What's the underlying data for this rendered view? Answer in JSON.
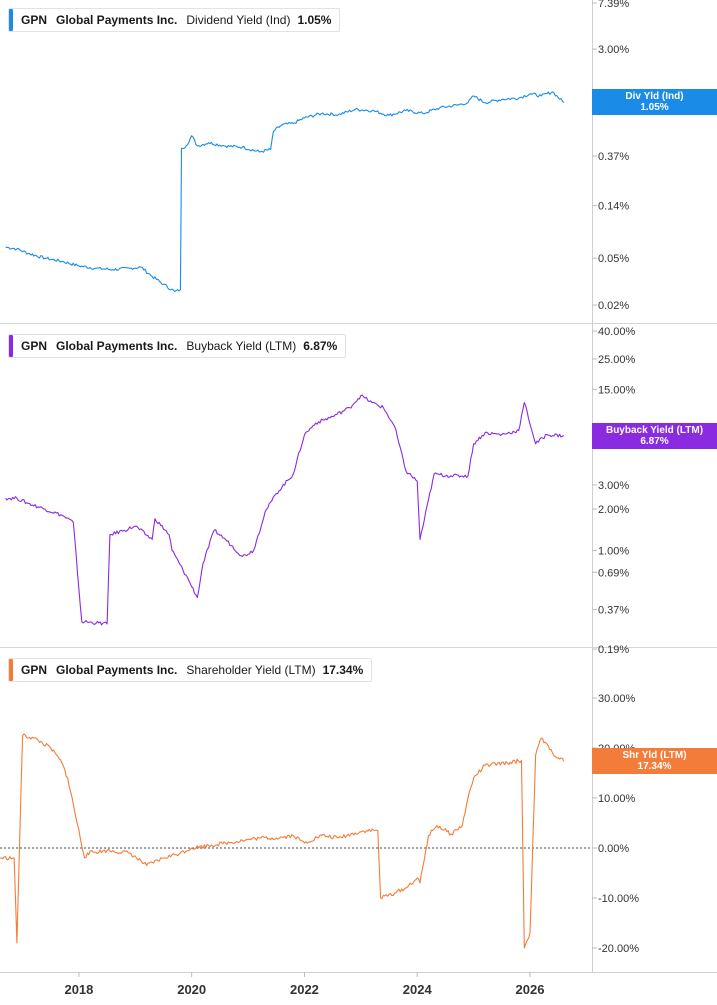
{
  "chart_data": [
    {
      "type": "line",
      "ticker": "GPN",
      "company": "Global Payments Inc.",
      "metric": "Dividend Yield (Ind)",
      "current_value": "1.05%",
      "badge_label": "Div Yld (Ind)",
      "color": "#1a8ce8",
      "scale": "log",
      "yticks": [
        "7.39%",
        "3.00%",
        "0.37%",
        "0.14%",
        "0.05%",
        "0.02%"
      ],
      "ytick_values": [
        7.39,
        3.0,
        0.37,
        0.14,
        0.05,
        0.02
      ],
      "ylim": [
        0.018,
        7.39
      ],
      "x": [
        2016.7,
        2016.9,
        2017.1,
        2017.4,
        2017.7,
        2018.0,
        2018.3,
        2018.6,
        2018.9,
        2019.1,
        2019.3,
        2019.5,
        2019.7,
        2019.8,
        2019.82,
        2019.9,
        2020.0,
        2020.1,
        2020.3,
        2020.6,
        2020.9,
        2021.2,
        2021.4,
        2021.45,
        2021.6,
        2021.8,
        2022.0,
        2022.3,
        2022.6,
        2022.9,
        2023.2,
        2023.5,
        2023.8,
        2024.1,
        2024.4,
        2024.7,
        2024.9,
        2025.0,
        2025.2,
        2025.5,
        2025.8,
        2026.0,
        2026.2,
        2026.4,
        2026.6
      ],
      "y": [
        0.062,
        0.06,
        0.055,
        0.05,
        0.047,
        0.043,
        0.041,
        0.04,
        0.041,
        0.042,
        0.035,
        0.03,
        0.026,
        0.027,
        0.43,
        0.45,
        0.55,
        0.45,
        0.48,
        0.45,
        0.44,
        0.4,
        0.42,
        0.6,
        0.68,
        0.7,
        0.78,
        0.85,
        0.83,
        0.92,
        0.9,
        0.82,
        0.9,
        0.85,
        0.95,
        1.0,
        1.05,
        1.2,
        1.05,
        1.12,
        1.15,
        1.25,
        1.2,
        1.3,
        1.05
      ]
    },
    {
      "type": "line",
      "ticker": "GPN",
      "company": "Global Payments Inc.",
      "metric": "Buyback Yield (LTM)",
      "current_value": "6.87%",
      "badge_label": "Buyback Yield (LTM)",
      "color": "#8a2be2",
      "scale": "log",
      "yticks": [
        "40.00%",
        "25.00%",
        "15.00%",
        "3.00%",
        "2.00%",
        "1.00%",
        "0.69%",
        "0.37%",
        "0.19%"
      ],
      "ytick_values": [
        40,
        25,
        15,
        3.0,
        2.0,
        1.0,
        0.69,
        0.37,
        0.19
      ],
      "ylim": [
        0.19,
        40
      ],
      "x": [
        2016.7,
        2016.9,
        2017.1,
        2017.4,
        2017.7,
        2017.9,
        2018.05,
        2018.1,
        2018.5,
        2018.55,
        2018.8,
        2019.0,
        2019.3,
        2019.35,
        2019.6,
        2019.65,
        2019.95,
        2020.1,
        2020.2,
        2020.4,
        2020.6,
        2020.9,
        2021.1,
        2021.3,
        2021.5,
        2021.8,
        2022.0,
        2022.2,
        2022.5,
        2022.8,
        2023.0,
        2023.2,
        2023.4,
        2023.6,
        2023.8,
        2024.0,
        2024.05,
        2024.3,
        2024.6,
        2024.9,
        2025.0,
        2025.2,
        2025.5,
        2025.8,
        2025.9,
        2026.1,
        2026.3,
        2026.6
      ],
      "y": [
        2.4,
        2.4,
        2.2,
        2.0,
        1.8,
        1.6,
        0.3,
        0.3,
        0.29,
        1.3,
        1.4,
        1.5,
        1.2,
        1.7,
        1.3,
        1.0,
        0.6,
        0.45,
        0.8,
        1.4,
        1.2,
        0.9,
        1.0,
        1.9,
        2.6,
        3.6,
        7.0,
        8.5,
        9.5,
        11.0,
        13.5,
        12.0,
        11.0,
        8.0,
        3.8,
        3.2,
        1.2,
        3.6,
        3.5,
        3.5,
        6.0,
        7.2,
        7.0,
        7.5,
        12.0,
        6.0,
        7.0,
        6.87
      ]
    },
    {
      "type": "line",
      "ticker": "GPN",
      "company": "Global Payments Inc.",
      "metric": "Shareholder Yield (LTM)",
      "current_value": "17.34%",
      "badge_label": "Shr Yld (LTM)",
      "color": "#f37c3a",
      "scale": "linear",
      "yticks": [
        "30.00%",
        "20.00%",
        "10.00%",
        "0.00%",
        "-10.00%",
        "-20.00%"
      ],
      "ytick_values": [
        30,
        20,
        10,
        0,
        -10,
        -20
      ],
      "ylim": [
        -26,
        36
      ],
      "zero_line": true,
      "x": [
        2016.6,
        2016.85,
        2016.9,
        2017.0,
        2017.2,
        2017.5,
        2017.7,
        2017.8,
        2018.1,
        2018.15,
        2018.5,
        2018.9,
        2019.2,
        2019.5,
        2019.8,
        2020.0,
        2020.3,
        2020.6,
        2020.9,
        2021.2,
        2021.5,
        2021.8,
        2022.0,
        2022.3,
        2022.6,
        2022.9,
        2023.1,
        2023.3,
        2023.35,
        2023.6,
        2023.8,
        2024.0,
        2024.05,
        2024.2,
        2024.35,
        2024.6,
        2024.8,
        2024.9,
        2025.0,
        2025.2,
        2025.6,
        2025.85,
        2025.9,
        2026.0,
        2026.1,
        2026.2,
        2026.4,
        2026.6
      ],
      "y": [
        -2.0,
        -2.0,
        -19.0,
        22.5,
        22.0,
        20.0,
        17.0,
        14.0,
        -2.0,
        -1.0,
        -0.5,
        -1.0,
        -3.5,
        -2.0,
        -1.0,
        0.0,
        0.5,
        1.0,
        1.5,
        2.0,
        2.0,
        2.5,
        1.0,
        2.5,
        2.0,
        3.0,
        3.5,
        3.5,
        -10.0,
        -9.0,
        -8.0,
        -6.0,
        -7.0,
        2.5,
        4.5,
        2.8,
        4.5,
        10.0,
        14.0,
        16.5,
        17.0,
        17.5,
        -20.0,
        -17.0,
        18.5,
        22.0,
        19.0,
        17.34
      ]
    }
  ],
  "x_axis": {
    "ticks": [
      "2018",
      "2020",
      "2022",
      "2024",
      "2026"
    ],
    "tick_values": [
      2018,
      2020,
      2022,
      2024,
      2026
    ],
    "xlim": [
      2016.6,
      2027.1
    ]
  }
}
